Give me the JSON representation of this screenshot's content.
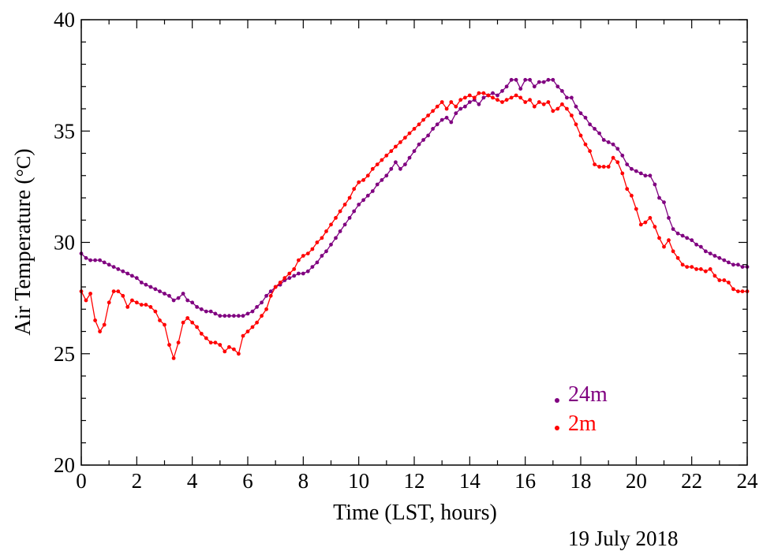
{
  "chart_data": {
    "type": "line",
    "xlabel": "Time (LST, hours)",
    "ylabel_text": "Air Temperature (",
    "ylabel_unit": "°C",
    "ylabel_close": ")",
    "xlim": [
      0,
      24
    ],
    "ylim": [
      20,
      40
    ],
    "xticks": [
      0,
      2,
      4,
      6,
      8,
      10,
      12,
      14,
      16,
      18,
      20,
      22,
      24
    ],
    "yticks": [
      20,
      25,
      30,
      35,
      40
    ],
    "grid": false,
    "legend_position": "bottom-right",
    "annotation": "19 July 2018",
    "series": [
      {
        "name": "24m",
        "color": "#800080",
        "points": [
          [
            0.0,
            29.5
          ],
          [
            0.17,
            29.3
          ],
          [
            0.33,
            29.2
          ],
          [
            0.5,
            29.2
          ],
          [
            0.67,
            29.2
          ],
          [
            0.83,
            29.1
          ],
          [
            1.0,
            29.0
          ],
          [
            1.17,
            28.9
          ],
          [
            1.33,
            28.8
          ],
          [
            1.5,
            28.7
          ],
          [
            1.67,
            28.6
          ],
          [
            1.83,
            28.5
          ],
          [
            2.0,
            28.4
          ],
          [
            2.17,
            28.2
          ],
          [
            2.33,
            28.1
          ],
          [
            2.5,
            28.0
          ],
          [
            2.67,
            27.9
          ],
          [
            2.83,
            27.8
          ],
          [
            3.0,
            27.7
          ],
          [
            3.17,
            27.6
          ],
          [
            3.33,
            27.4
          ],
          [
            3.5,
            27.5
          ],
          [
            3.67,
            27.7
          ],
          [
            3.83,
            27.4
          ],
          [
            4.0,
            27.3
          ],
          [
            4.17,
            27.1
          ],
          [
            4.33,
            27.0
          ],
          [
            4.5,
            26.9
          ],
          [
            4.67,
            26.9
          ],
          [
            4.83,
            26.8
          ],
          [
            5.0,
            26.7
          ],
          [
            5.17,
            26.7
          ],
          [
            5.33,
            26.7
          ],
          [
            5.5,
            26.7
          ],
          [
            5.67,
            26.7
          ],
          [
            5.83,
            26.7
          ],
          [
            6.0,
            26.8
          ],
          [
            6.17,
            26.9
          ],
          [
            6.33,
            27.1
          ],
          [
            6.5,
            27.3
          ],
          [
            6.67,
            27.6
          ],
          [
            6.83,
            27.8
          ],
          [
            7.0,
            28.0
          ],
          [
            7.17,
            28.1
          ],
          [
            7.33,
            28.3
          ],
          [
            7.5,
            28.4
          ],
          [
            7.67,
            28.5
          ],
          [
            7.83,
            28.6
          ],
          [
            8.0,
            28.6
          ],
          [
            8.17,
            28.7
          ],
          [
            8.33,
            28.9
          ],
          [
            8.5,
            29.1
          ],
          [
            8.67,
            29.4
          ],
          [
            8.83,
            29.6
          ],
          [
            9.0,
            29.9
          ],
          [
            9.17,
            30.2
          ],
          [
            9.33,
            30.5
          ],
          [
            9.5,
            30.8
          ],
          [
            9.67,
            31.1
          ],
          [
            9.83,
            31.4
          ],
          [
            10.0,
            31.7
          ],
          [
            10.17,
            31.9
          ],
          [
            10.33,
            32.1
          ],
          [
            10.5,
            32.3
          ],
          [
            10.67,
            32.6
          ],
          [
            10.83,
            32.8
          ],
          [
            11.0,
            33.0
          ],
          [
            11.17,
            33.3
          ],
          [
            11.33,
            33.6
          ],
          [
            11.5,
            33.3
          ],
          [
            11.67,
            33.5
          ],
          [
            11.83,
            33.8
          ],
          [
            12.0,
            34.1
          ],
          [
            12.17,
            34.4
          ],
          [
            12.33,
            34.6
          ],
          [
            12.5,
            34.8
          ],
          [
            12.67,
            35.1
          ],
          [
            12.83,
            35.3
          ],
          [
            13.0,
            35.5
          ],
          [
            13.17,
            35.6
          ],
          [
            13.33,
            35.4
          ],
          [
            13.5,
            35.8
          ],
          [
            13.67,
            36.0
          ],
          [
            13.83,
            36.1
          ],
          [
            14.0,
            36.3
          ],
          [
            14.17,
            36.4
          ],
          [
            14.33,
            36.2
          ],
          [
            14.5,
            36.5
          ],
          [
            14.67,
            36.6
          ],
          [
            14.83,
            36.7
          ],
          [
            15.0,
            36.6
          ],
          [
            15.17,
            36.8
          ],
          [
            15.33,
            37.0
          ],
          [
            15.5,
            37.3
          ],
          [
            15.67,
            37.3
          ],
          [
            15.83,
            36.9
          ],
          [
            16.0,
            37.3
          ],
          [
            16.17,
            37.3
          ],
          [
            16.33,
            37.0
          ],
          [
            16.5,
            37.2
          ],
          [
            16.67,
            37.2
          ],
          [
            16.83,
            37.3
          ],
          [
            17.0,
            37.3
          ],
          [
            17.17,
            37.0
          ],
          [
            17.33,
            36.8
          ],
          [
            17.5,
            36.5
          ],
          [
            17.67,
            36.5
          ],
          [
            17.83,
            36.1
          ],
          [
            18.0,
            35.8
          ],
          [
            18.17,
            35.6
          ],
          [
            18.33,
            35.3
          ],
          [
            18.5,
            35.1
          ],
          [
            18.67,
            34.9
          ],
          [
            18.83,
            34.6
          ],
          [
            19.0,
            34.5
          ],
          [
            19.17,
            34.4
          ],
          [
            19.33,
            34.2
          ],
          [
            19.5,
            33.9
          ],
          [
            19.67,
            33.5
          ],
          [
            19.83,
            33.3
          ],
          [
            20.0,
            33.2
          ],
          [
            20.17,
            33.1
          ],
          [
            20.33,
            33.0
          ],
          [
            20.5,
            33.0
          ],
          [
            20.67,
            32.6
          ],
          [
            20.83,
            32.0
          ],
          [
            21.0,
            31.8
          ],
          [
            21.17,
            31.1
          ],
          [
            21.33,
            30.6
          ],
          [
            21.5,
            30.4
          ],
          [
            21.67,
            30.3
          ],
          [
            21.83,
            30.2
          ],
          [
            22.0,
            30.1
          ],
          [
            22.17,
            29.9
          ],
          [
            22.33,
            29.8
          ],
          [
            22.5,
            29.6
          ],
          [
            22.67,
            29.5
          ],
          [
            22.83,
            29.4
          ],
          [
            23.0,
            29.3
          ],
          [
            23.17,
            29.2
          ],
          [
            23.33,
            29.1
          ],
          [
            23.5,
            29.0
          ],
          [
            23.67,
            29.0
          ],
          [
            23.83,
            28.9
          ],
          [
            24.0,
            28.9
          ]
        ]
      },
      {
        "name": "2m",
        "color": "#ff0000",
        "points": [
          [
            0.0,
            27.8
          ],
          [
            0.17,
            27.4
          ],
          [
            0.33,
            27.7
          ],
          [
            0.5,
            26.5
          ],
          [
            0.67,
            26.0
          ],
          [
            0.83,
            26.3
          ],
          [
            1.0,
            27.3
          ],
          [
            1.17,
            27.8
          ],
          [
            1.33,
            27.8
          ],
          [
            1.5,
            27.6
          ],
          [
            1.67,
            27.1
          ],
          [
            1.83,
            27.4
          ],
          [
            2.0,
            27.3
          ],
          [
            2.17,
            27.2
          ],
          [
            2.33,
            27.2
          ],
          [
            2.5,
            27.1
          ],
          [
            2.67,
            26.9
          ],
          [
            2.83,
            26.5
          ],
          [
            3.0,
            26.3
          ],
          [
            3.17,
            25.4
          ],
          [
            3.33,
            24.8
          ],
          [
            3.5,
            25.5
          ],
          [
            3.67,
            26.4
          ],
          [
            3.83,
            26.6
          ],
          [
            4.0,
            26.4
          ],
          [
            4.17,
            26.2
          ],
          [
            4.33,
            25.9
          ],
          [
            4.5,
            25.7
          ],
          [
            4.67,
            25.5
          ],
          [
            4.83,
            25.5
          ],
          [
            5.0,
            25.4
          ],
          [
            5.17,
            25.1
          ],
          [
            5.33,
            25.3
          ],
          [
            5.5,
            25.2
          ],
          [
            5.67,
            25.0
          ],
          [
            5.83,
            25.8
          ],
          [
            6.0,
            26.0
          ],
          [
            6.17,
            26.2
          ],
          [
            6.33,
            26.4
          ],
          [
            6.5,
            26.7
          ],
          [
            6.67,
            27.0
          ],
          [
            6.83,
            27.6
          ],
          [
            7.0,
            28.0
          ],
          [
            7.17,
            28.2
          ],
          [
            7.33,
            28.4
          ],
          [
            7.5,
            28.6
          ],
          [
            7.67,
            28.8
          ],
          [
            7.83,
            29.2
          ],
          [
            8.0,
            29.4
          ],
          [
            8.17,
            29.5
          ],
          [
            8.33,
            29.7
          ],
          [
            8.5,
            30.0
          ],
          [
            8.67,
            30.2
          ],
          [
            8.83,
            30.5
          ],
          [
            9.0,
            30.8
          ],
          [
            9.17,
            31.1
          ],
          [
            9.33,
            31.4
          ],
          [
            9.5,
            31.7
          ],
          [
            9.67,
            32.0
          ],
          [
            9.83,
            32.4
          ],
          [
            10.0,
            32.7
          ],
          [
            10.17,
            32.8
          ],
          [
            10.33,
            33.0
          ],
          [
            10.5,
            33.3
          ],
          [
            10.67,
            33.5
          ],
          [
            10.83,
            33.7
          ],
          [
            11.0,
            33.9
          ],
          [
            11.17,
            34.1
          ],
          [
            11.33,
            34.3
          ],
          [
            11.5,
            34.5
          ],
          [
            11.67,
            34.7
          ],
          [
            11.83,
            34.9
          ],
          [
            12.0,
            35.1
          ],
          [
            12.17,
            35.3
          ],
          [
            12.33,
            35.5
          ],
          [
            12.5,
            35.7
          ],
          [
            12.67,
            35.9
          ],
          [
            12.83,
            36.1
          ],
          [
            13.0,
            36.3
          ],
          [
            13.17,
            36.0
          ],
          [
            13.33,
            36.3
          ],
          [
            13.5,
            36.1
          ],
          [
            13.67,
            36.4
          ],
          [
            13.83,
            36.5
          ],
          [
            14.0,
            36.6
          ],
          [
            14.17,
            36.5
          ],
          [
            14.33,
            36.7
          ],
          [
            14.5,
            36.7
          ],
          [
            14.67,
            36.6
          ],
          [
            14.83,
            36.5
          ],
          [
            15.0,
            36.4
          ],
          [
            15.17,
            36.3
          ],
          [
            15.33,
            36.4
          ],
          [
            15.5,
            36.5
          ],
          [
            15.67,
            36.6
          ],
          [
            15.83,
            36.5
          ],
          [
            16.0,
            36.3
          ],
          [
            16.17,
            36.4
          ],
          [
            16.33,
            36.1
          ],
          [
            16.5,
            36.3
          ],
          [
            16.67,
            36.2
          ],
          [
            16.83,
            36.3
          ],
          [
            17.0,
            35.9
          ],
          [
            17.17,
            36.0
          ],
          [
            17.33,
            36.2
          ],
          [
            17.5,
            36.0
          ],
          [
            17.67,
            35.7
          ],
          [
            17.83,
            35.3
          ],
          [
            18.0,
            34.8
          ],
          [
            18.17,
            34.4
          ],
          [
            18.33,
            34.1
          ],
          [
            18.5,
            33.5
          ],
          [
            18.67,
            33.4
          ],
          [
            18.83,
            33.4
          ],
          [
            19.0,
            33.4
          ],
          [
            19.17,
            33.8
          ],
          [
            19.33,
            33.6
          ],
          [
            19.5,
            33.1
          ],
          [
            19.67,
            32.4
          ],
          [
            19.83,
            32.1
          ],
          [
            20.0,
            31.5
          ],
          [
            20.17,
            30.8
          ],
          [
            20.33,
            30.9
          ],
          [
            20.5,
            31.1
          ],
          [
            20.67,
            30.7
          ],
          [
            20.83,
            30.2
          ],
          [
            21.0,
            29.8
          ],
          [
            21.17,
            30.1
          ],
          [
            21.33,
            29.6
          ],
          [
            21.5,
            29.3
          ],
          [
            21.67,
            29.0
          ],
          [
            21.83,
            28.9
          ],
          [
            22.0,
            28.9
          ],
          [
            22.17,
            28.8
          ],
          [
            22.33,
            28.8
          ],
          [
            22.5,
            28.7
          ],
          [
            22.67,
            28.8
          ],
          [
            22.83,
            28.5
          ],
          [
            23.0,
            28.3
          ],
          [
            23.17,
            28.3
          ],
          [
            23.33,
            28.2
          ],
          [
            23.5,
            27.9
          ],
          [
            23.67,
            27.8
          ],
          [
            23.83,
            27.8
          ],
          [
            24.0,
            27.8
          ]
        ]
      }
    ]
  }
}
